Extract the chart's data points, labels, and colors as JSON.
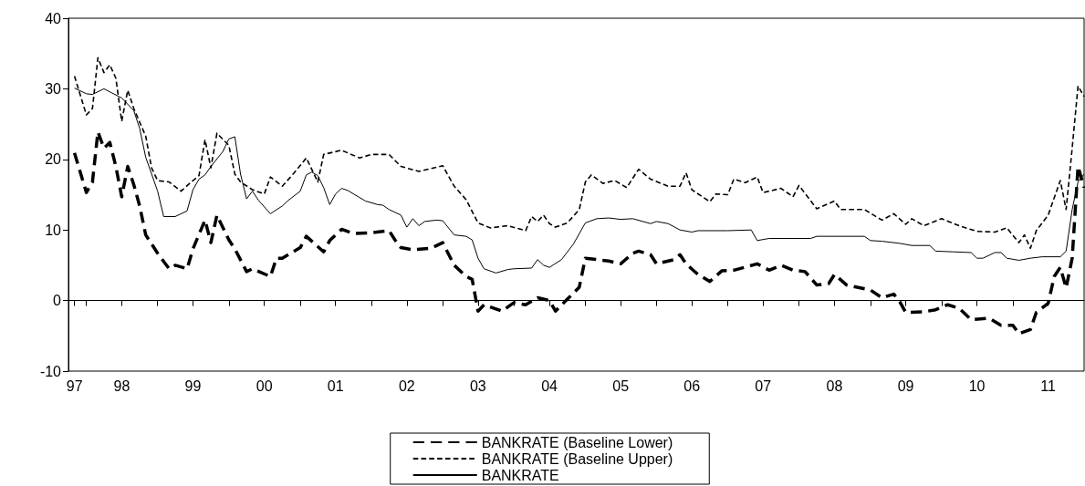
{
  "chart_data": {
    "type": "line",
    "legend": "bottom",
    "xlim": [
      "1997-10",
      "2012-01"
    ],
    "ylim": [
      -10,
      40
    ],
    "yticks": [
      -10,
      0,
      10,
      20,
      30,
      40
    ],
    "xticks": [
      {
        "value": "1997-11",
        "label": "97"
      },
      {
        "value": "1998-01",
        "label": null
      },
      {
        "value": "1998-07",
        "label": "98"
      },
      {
        "value": "1999-01",
        "label": null
      },
      {
        "value": "1999-07",
        "label": "99"
      },
      {
        "value": "2000-01",
        "label": null
      },
      {
        "value": "2000-07",
        "label": "00"
      },
      {
        "value": "2001-01",
        "label": null
      },
      {
        "value": "2001-07",
        "label": "01"
      },
      {
        "value": "2002-01",
        "label": null
      },
      {
        "value": "2002-07",
        "label": "02"
      },
      {
        "value": "2003-01",
        "label": null
      },
      {
        "value": "2003-07",
        "label": "03"
      },
      {
        "value": "2004-01",
        "label": null
      },
      {
        "value": "2004-07",
        "label": "04"
      },
      {
        "value": "2005-01",
        "label": null
      },
      {
        "value": "2005-07",
        "label": "05"
      },
      {
        "value": "2006-01",
        "label": null
      },
      {
        "value": "2006-07",
        "label": "06"
      },
      {
        "value": "2007-01",
        "label": null
      },
      {
        "value": "2007-07",
        "label": "07"
      },
      {
        "value": "2008-01",
        "label": null
      },
      {
        "value": "2008-07",
        "label": "08"
      },
      {
        "value": "2009-01",
        "label": null
      },
      {
        "value": "2009-07",
        "label": "09"
      },
      {
        "value": "2010-01",
        "label": null
      },
      {
        "value": "2010-07",
        "label": "10"
      },
      {
        "value": "2011-01",
        "label": null
      },
      {
        "value": "2011-07",
        "label": "11"
      }
    ],
    "series": [
      {
        "name": "BANKRATE (Baseline Lower)",
        "color": "#000000",
        "line_style": "dashed",
        "x": [
          "1997-11",
          "1998-01",
          "1998-02",
          "1998-03",
          "1998-04",
          "1998-05",
          "1998-06",
          "1998-07",
          "1998-08",
          "1998-09",
          "1998-10",
          "1998-11",
          "1999-01",
          "1999-03",
          "1999-04",
          "1999-06",
          "1999-07",
          "1999-09",
          "1999-10",
          "1999-11",
          "2000-01",
          "2000-02",
          "2000-04",
          "2000-05",
          "2000-08",
          "2000-09",
          "2000-10",
          "2001-01",
          "2001-02",
          "2001-05",
          "2001-06",
          "2001-08",
          "2001-10",
          "2002-01",
          "2002-04",
          "2002-05",
          "2002-06",
          "2002-08",
          "2002-11",
          "2003-01",
          "2003-03",
          "2003-05",
          "2003-06",
          "2003-07",
          "2003-08",
          "2003-11",
          "2004-01",
          "2004-03",
          "2004-05",
          "2004-07",
          "2004-08",
          "2004-10",
          "2004-12",
          "2005-01",
          "2005-03",
          "2005-05",
          "2005-07",
          "2005-09",
          "2005-10",
          "2005-12",
          "2006-01",
          "2006-04",
          "2006-05",
          "2006-06",
          "2006-08",
          "2006-10",
          "2006-12",
          "2007-02",
          "2007-06",
          "2007-08",
          "2007-10",
          "2007-12",
          "2008-02",
          "2008-04",
          "2008-06",
          "2008-07",
          "2008-09",
          "2009-01",
          "2009-03",
          "2009-05",
          "2009-06",
          "2009-07",
          "2009-10",
          "2009-12",
          "2010-02",
          "2010-04",
          "2010-06",
          "2010-09",
          "2010-11",
          "2011-01",
          "2011-02",
          "2011-04",
          "2011-05",
          "2011-07",
          "2011-08",
          "2011-09",
          "2011-10",
          "2011-11",
          "2011-12",
          "2012-01"
        ],
        "values": [
          20.9,
          15.3,
          16.8,
          23.9,
          21.6,
          22.4,
          19.0,
          14.7,
          19.0,
          16.4,
          13.4,
          9.3,
          6.7,
          4.5,
          5.0,
          4.5,
          7.3,
          11.4,
          8.2,
          12.1,
          8.6,
          7.3,
          4.1,
          4.5,
          3.4,
          6.0,
          6.0,
          7.5,
          9.1,
          6.9,
          8.5,
          10.1,
          9.5,
          9.6,
          9.9,
          8.6,
          7.5,
          7.2,
          7.4,
          8.2,
          5.0,
          3.4,
          3.0,
          -1.5,
          -0.6,
          -1.5,
          -0.3,
          -0.6,
          0.4,
          0.0,
          -1.5,
          0.2,
          1.9,
          6.0,
          5.8,
          5.6,
          5.2,
          6.7,
          7.0,
          6.5,
          5.2,
          5.8,
          6.5,
          5.2,
          3.7,
          2.7,
          4.2,
          4.3,
          5.2,
          4.3,
          5.0,
          4.3,
          4.1,
          2.2,
          2.4,
          3.7,
          2.2,
          1.5,
          0.4,
          0.9,
          -0.2,
          -1.7,
          -1.6,
          -1.3,
          -0.6,
          -1.1,
          -2.7,
          -2.5,
          -3.5,
          -3.5,
          -4.7,
          -4.1,
          -1.7,
          -0.4,
          3.4,
          4.7,
          1.8,
          6.0,
          19.0,
          16.0
        ]
      },
      {
        "name": "BANKRATE (Baseline Upper)",
        "color": "#000000",
        "line_style": "dashed",
        "x": [
          "1997-11",
          "1998-01",
          "1998-02",
          "1998-03",
          "1998-04",
          "1998-05",
          "1998-06",
          "1998-07",
          "1998-08",
          "1998-09",
          "1998-11",
          "1998-12",
          "1999-01",
          "1999-03",
          "1999-05",
          "1999-07",
          "1999-08",
          "1999-09",
          "1999-10",
          "1999-11",
          "2000-01",
          "2000-02",
          "2000-03",
          "2000-05",
          "2000-07",
          "2000-08",
          "2000-10",
          "2000-12",
          "2001-02",
          "2001-04",
          "2001-05",
          "2001-08",
          "2001-11",
          "2002-01",
          "2002-04",
          "2002-06",
          "2002-09",
          "2003-01",
          "2003-03",
          "2003-05",
          "2003-07",
          "2003-09",
          "2003-12",
          "2004-03",
          "2004-04",
          "2004-05",
          "2004-06",
          "2004-07",
          "2004-08",
          "2004-10",
          "2004-12",
          "2005-01",
          "2005-02",
          "2005-04",
          "2005-06",
          "2005-08",
          "2005-10",
          "2005-12",
          "2006-03",
          "2006-05",
          "2006-06",
          "2006-07",
          "2006-10",
          "2006-11",
          "2007-01",
          "2007-02",
          "2007-04",
          "2007-06",
          "2007-07",
          "2007-10",
          "2007-12",
          "2008-01",
          "2008-04",
          "2008-07",
          "2008-08",
          "2008-12",
          "2009-03",
          "2009-05",
          "2009-07",
          "2009-08",
          "2009-10",
          "2010-01",
          "2010-04",
          "2010-07",
          "2010-10",
          "2010-12",
          "2011-02",
          "2011-03",
          "2011-04",
          "2011-05",
          "2011-07",
          "2011-09",
          "2011-10",
          "2011-11",
          "2011-12",
          "2012-01"
        ],
        "values": [
          31.8,
          26.3,
          27.2,
          34.4,
          32.3,
          33.4,
          31.5,
          25.4,
          29.8,
          27.2,
          23.3,
          18.8,
          17.0,
          16.8,
          15.5,
          17.0,
          17.7,
          22.8,
          18.8,
          23.7,
          22.0,
          17.9,
          16.8,
          15.7,
          15.1,
          17.5,
          16.2,
          18.1,
          20.2,
          16.8,
          20.7,
          21.3,
          20.2,
          20.7,
          20.7,
          19.0,
          18.3,
          19.1,
          16.2,
          14.3,
          11.0,
          10.3,
          10.6,
          9.9,
          11.9,
          11.2,
          12.1,
          10.9,
          10.4,
          11.0,
          12.9,
          16.8,
          17.8,
          16.6,
          17.0,
          16.0,
          18.6,
          17.2,
          16.2,
          16.2,
          18.1,
          15.7,
          14.0,
          15.1,
          15.0,
          17.2,
          16.7,
          17.5,
          15.3,
          15.9,
          14.7,
          16.3,
          13.0,
          14.1,
          12.9,
          12.9,
          11.4,
          12.3,
          10.8,
          11.6,
          10.6,
          11.6,
          10.6,
          9.8,
          9.7,
          10.3,
          8.2,
          9.3,
          7.4,
          9.9,
          12.1,
          17.0,
          12.9,
          21.6,
          30.4,
          28.9
        ]
      },
      {
        "name": "BANKRATE",
        "color": "#000000",
        "line_style": "solid",
        "x": [
          "1997-11",
          "1998-01",
          "1998-02",
          "1998-04",
          "1998-07",
          "1998-09",
          "1998-10",
          "1998-11",
          "1999-01",
          "1999-02",
          "1999-04",
          "1999-06",
          "1999-07",
          "1999-08",
          "1999-09",
          "1999-10",
          "1999-12",
          "2000-01",
          "2000-02",
          "2000-03",
          "2000-04",
          "2000-05",
          "2000-06",
          "2000-08",
          "2000-10",
          "2000-11",
          "2001-01",
          "2001-02",
          "2001-03",
          "2001-04",
          "2001-05",
          "2001-06",
          "2001-07",
          "2001-08",
          "2001-09",
          "2001-11",
          "2001-12",
          "2002-02",
          "2002-03",
          "2002-04",
          "2002-06",
          "2002-07",
          "2002-08",
          "2002-09",
          "2002-10",
          "2002-12",
          "2003-01",
          "2003-03",
          "2003-05",
          "2003-06",
          "2003-07",
          "2003-08",
          "2003-10",
          "2003-12",
          "2004-01",
          "2004-04",
          "2004-05",
          "2004-06",
          "2004-07",
          "2004-09",
          "2004-11",
          "2005-01",
          "2005-03",
          "2005-05",
          "2005-07",
          "2005-09",
          "2005-12",
          "2006-01",
          "2006-03",
          "2006-05",
          "2006-07",
          "2006-08",
          "2007-01",
          "2007-05",
          "2007-06",
          "2007-08",
          "2008-03",
          "2008-04",
          "2008-12",
          "2009-01",
          "2009-03",
          "2009-06",
          "2009-08",
          "2009-11",
          "2009-12",
          "2010-03",
          "2010-06",
          "2010-07",
          "2010-08",
          "2010-10",
          "2010-11",
          "2010-12",
          "2011-02",
          "2011-04",
          "2011-06",
          "2011-09",
          "2011-10",
          "2011-11",
          "2011-12",
          "2012-01"
        ],
        "values": [
          30.1,
          29.3,
          29.2,
          30.0,
          28.7,
          26.9,
          24.4,
          20.3,
          15.5,
          11.9,
          11.9,
          12.7,
          15.7,
          17.2,
          17.8,
          19.0,
          21.1,
          22.9,
          23.2,
          17.9,
          14.4,
          15.5,
          14.2,
          12.3,
          13.4,
          14.2,
          15.5,
          17.8,
          18.2,
          17.7,
          16.0,
          13.6,
          15.1,
          15.9,
          15.6,
          14.6,
          14.1,
          13.6,
          13.5,
          12.9,
          12.1,
          10.4,
          11.6,
          10.6,
          11.2,
          11.4,
          11.3,
          9.3,
          9.1,
          8.6,
          6.0,
          4.5,
          3.9,
          4.4,
          4.5,
          4.6,
          5.8,
          5.0,
          4.7,
          5.8,
          8.0,
          11.0,
          11.6,
          11.7,
          11.5,
          11.6,
          10.9,
          11.2,
          10.9,
          10.0,
          9.7,
          9.9,
          9.9,
          10.0,
          8.5,
          8.8,
          8.8,
          9.1,
          9.1,
          8.5,
          8.4,
          8.1,
          7.8,
          7.8,
          7.0,
          6.9,
          6.8,
          6.0,
          6.0,
          6.8,
          6.8,
          6.0,
          5.7,
          6.0,
          6.2,
          6.2,
          7.0,
          12.9,
          16.8,
          17.9
        ]
      }
    ]
  }
}
